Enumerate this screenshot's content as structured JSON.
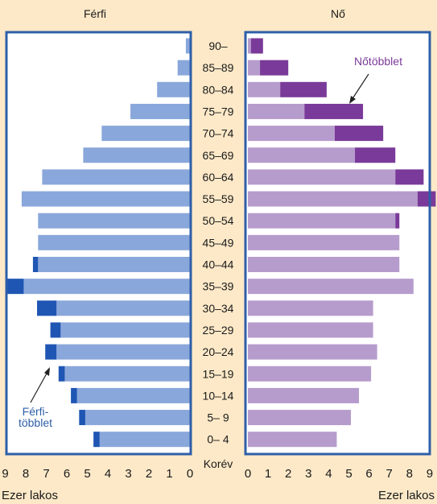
{
  "chart_data": {
    "type": "bar",
    "subtype": "population-pyramid",
    "left_panel_title": "Férfi",
    "right_panel_title": "Nő",
    "center_axis_label": "Korév",
    "left_unit_label": "Ezer lakos",
    "right_unit_label": "Ezer lakos",
    "xlim": [
      0,
      9
    ],
    "x_ticks": [
      "0",
      "1",
      "2",
      "3",
      "4",
      "5",
      "6",
      "7",
      "8",
      "9"
    ],
    "age_groups": [
      "90–",
      "85–89",
      "80–84",
      "75–79",
      "70–74",
      "65–69",
      "60–64",
      "55–59",
      "50–54",
      "45–49",
      "40–44",
      "35–39",
      "30–34",
      "25–29",
      "20–24",
      "15–19",
      "10–14",
      "5– 9",
      "0– 4"
    ],
    "series": [
      {
        "side": "left",
        "part": "base",
        "values": [
          0.2,
          0.6,
          1.6,
          2.9,
          4.3,
          5.2,
          7.2,
          8.2,
          7.4,
          7.4,
          7.4,
          8.1,
          6.5,
          6.3,
          6.5,
          6.1,
          5.5,
          5.1,
          4.4
        ]
      },
      {
        "side": "left",
        "part": "surplus",
        "name": "Férfi-\ntöbblet",
        "values": [
          0,
          0,
          0,
          0,
          0,
          0,
          0,
          0,
          0,
          0,
          0.25,
          0.85,
          0.95,
          0.5,
          0.55,
          0.3,
          0.3,
          0.3,
          0.3
        ]
      },
      {
        "side": "right",
        "part": "base",
        "values": [
          0.15,
          0.6,
          1.6,
          2.8,
          4.3,
          5.3,
          7.3,
          8.4,
          7.3,
          7.5,
          7.5,
          8.2,
          6.2,
          6.2,
          6.4,
          6.1,
          5.5,
          5.1,
          4.4
        ]
      },
      {
        "side": "right",
        "part": "surplus",
        "name": "Nőtöbblet",
        "values": [
          0.6,
          1.4,
          2.3,
          2.9,
          2.4,
          2.0,
          1.4,
          0.9,
          0.2,
          0,
          0,
          0,
          0,
          0,
          0,
          0,
          0,
          0,
          0
        ]
      }
    ],
    "colors": {
      "background": "#fde9c8",
      "plot_background": "#ffffff",
      "frame": "#2e5fa8",
      "male_base": "#8aa7db",
      "male_surplus": "#1f56b4",
      "female_base": "#b69ccc",
      "female_surplus": "#7a3a99",
      "female_annotation": "#7a3a99",
      "male_annotation": "#2e5fa8"
    }
  }
}
